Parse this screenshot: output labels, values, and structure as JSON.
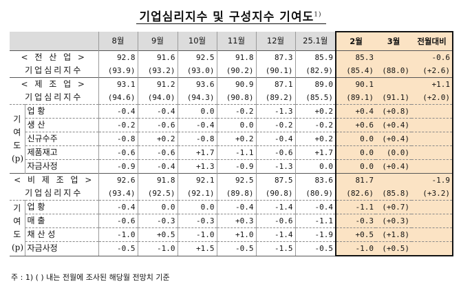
{
  "title": "기업심리지수 및 구성지수 기여도",
  "title_sup": "1)",
  "footnote": "주 : 1) (   ) 내는 전월에 조사된 해당월 전망치 기준",
  "headers": {
    "months": [
      "8월",
      "9월",
      "10월",
      "11월",
      "12월",
      "25.1월"
    ],
    "feb": "2월",
    "mar": "3월",
    "mom": "전월대비"
  },
  "side_label": "기\n여\n도\n(p)",
  "sections": {
    "all": {
      "title1": "< 전 산 업 >",
      "title2": "기업심리지수",
      "values": [
        "92.8",
        "91.6",
        "92.5",
        "91.8",
        "87.3",
        "85.9"
      ],
      "forecast": [
        "(93.9)",
        "(93.2)",
        "(93.0)",
        "(90.2)",
        "(90.1)",
        "(82.9)"
      ],
      "feb": "85.3",
      "feb_f": "(85.4)",
      "mar": "",
      "mar_f": "(88.0)",
      "mom": "-0.6",
      "mom_f": "(+2.6)"
    },
    "mfg": {
      "title1": "< 제 조 업 >",
      "title2": "기업심리지수",
      "values": [
        "93.1",
        "91.2",
        "93.6",
        "90.9",
        "87.1",
        "89.0"
      ],
      "forecast": [
        "(94.6)",
        "(94.0)",
        "(94.3)",
        "(90.8)",
        "(89.2)",
        "(85.5)"
      ],
      "feb": "90.1",
      "feb_f": "(89.1)",
      "mar": "",
      "mar_f": "(91.1)",
      "mom": "+1.1",
      "mom_f": "(+2.0)",
      "items": [
        {
          "label": "업   황",
          "values": [
            "-0.4",
            "-0.4",
            "0.0",
            "-0.2",
            "-1.3",
            "+0.2"
          ],
          "feb": "+0.4",
          "mar": "(+0.8)"
        },
        {
          "label": "생   산",
          "values": [
            "-0.2",
            "-0.6",
            "-0.4",
            "0.0",
            "-0.2",
            "-0.2"
          ],
          "feb": "+0.6",
          "mar": "(+0.4)"
        },
        {
          "label": "신규수주",
          "values": [
            "-0.8",
            "+0.2",
            "-0.8",
            "+0.2",
            "-0.4",
            "+0.2"
          ],
          "feb": "0.0",
          "mar": "(+0.4)"
        },
        {
          "label": "제품재고",
          "values": [
            "-0.6",
            "-0.6",
            "+1.7",
            "-1.1",
            "-0.6",
            "+1.7"
          ],
          "feb": "0.0",
          "mar": "(0.0)"
        },
        {
          "label": "자금사정",
          "values": [
            "-0.9",
            "-0.4",
            "+1.3",
            "-0.9",
            "-1.3",
            "0.0"
          ],
          "feb": "0.0",
          "mar": "(+0.4)"
        }
      ]
    },
    "nonmfg": {
      "title1": "< 비 제 조 업 >",
      "title2": "기업심리지수",
      "values": [
        "92.6",
        "91.8",
        "92.1",
        "92.5",
        "87.5",
        "83.6"
      ],
      "forecast": [
        "(93.4)",
        "(92.5)",
        "(92.1)",
        "(89.8)",
        "(90.8)",
        "(80.9)"
      ],
      "feb": "81.7",
      "feb_f": "(82.6)",
      "mar": "",
      "mar_f": "(85.8)",
      "mom": "-1.9",
      "mom_f": "(+3.2)",
      "items": [
        {
          "label": "업   황",
          "values": [
            "-0.4",
            "0.0",
            "0.0",
            "-0.4",
            "-1.4",
            "-0.4"
          ],
          "feb": "-1.1",
          "mar": "(+0.7)"
        },
        {
          "label": "매   출",
          "values": [
            "-0.6",
            "-0.3",
            "-0.3",
            "+0.3",
            "-0.6",
            "-1.1"
          ],
          "feb": "-0.3",
          "mar": "(+0.3)"
        },
        {
          "label": "채 산 성",
          "values": [
            "-1.0",
            "+0.5",
            "-1.0",
            "+1.0",
            "-1.4",
            "-1.9"
          ],
          "feb": "+0.5",
          "mar": "(+1.8)"
        },
        {
          "label": "자금사정",
          "values": [
            "-0.5",
            "-1.0",
            "+1.5",
            "-0.5",
            "-1.5",
            "-0.5"
          ],
          "feb": "-1.0",
          "mar": "(+0.5)"
        }
      ]
    }
  }
}
